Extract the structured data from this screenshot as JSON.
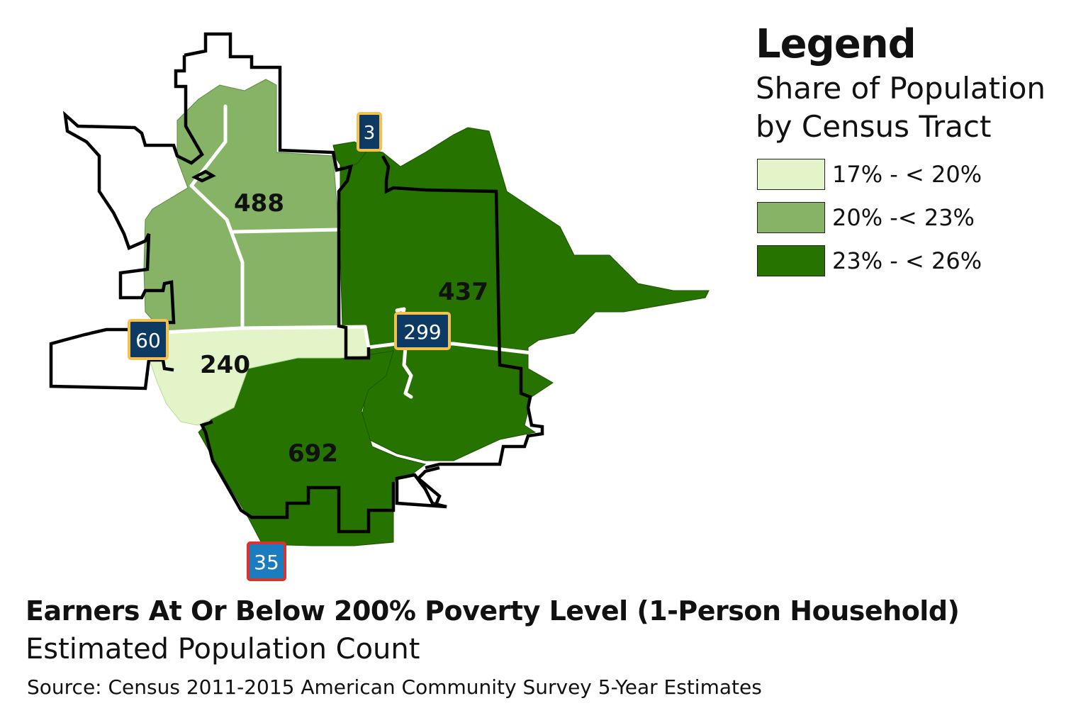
{
  "legend": {
    "title": "Legend",
    "subtitle_line1": "Share of Population",
    "subtitle_line2": "by Census Tract",
    "items": [
      {
        "label": "17% - < 20%",
        "color": "#e3f5c8"
      },
      {
        "label": "20% -< 23%",
        "color": "#86b366"
      },
      {
        "label": "23% - < 26%",
        "color": "#267300"
      }
    ]
  },
  "map": {
    "tract_labels": {
      "north": "488",
      "east": "437",
      "west": "240",
      "south": "692"
    },
    "routes": {
      "r3": "3",
      "r60": "60",
      "r299": "299",
      "r35": "35"
    },
    "colors": {
      "shield_fill": "#0d3a63",
      "shield_border": "#f2c14e",
      "interstate_fill": "#1b7cc0",
      "interstate_border": "#d9342b",
      "road": "#ffffff",
      "outline": "#000000"
    }
  },
  "title": "Earners At Or Below 200% Poverty Level (1-Person Household)",
  "subtitle": "Estimated Population Count",
  "source": "Source: Census 2011-2015 American Community Survey 5-Year Estimates"
}
